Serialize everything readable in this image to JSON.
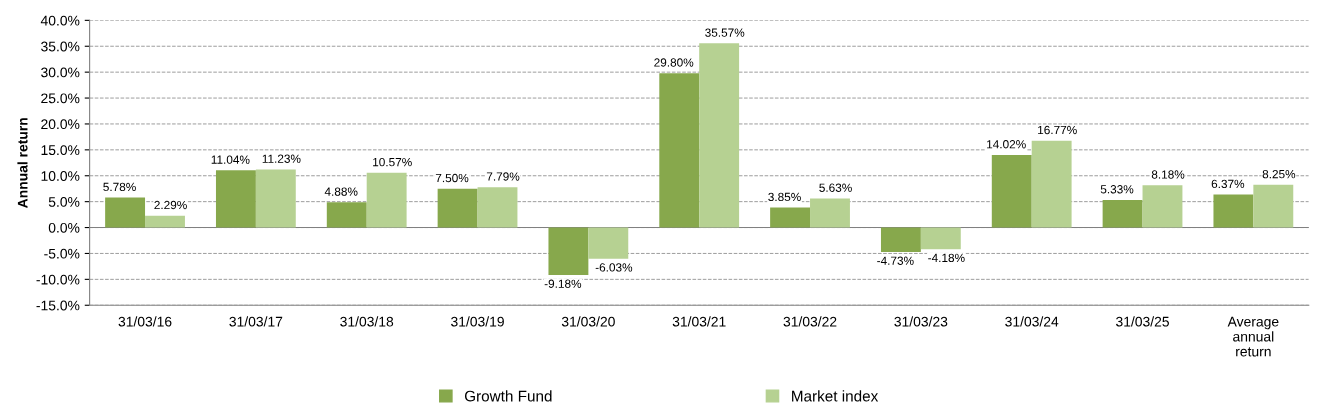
{
  "chart_data": {
    "type": "bar",
    "ylabel": "Annual return",
    "categories": [
      "31/03/16",
      "31/03/17",
      "31/03/18",
      "31/03/19",
      "31/03/20",
      "31/03/21",
      "31/03/22",
      "31/03/23",
      "31/03/24",
      "31/03/25",
      "Average\nannual\nreturn"
    ],
    "series": [
      {
        "name": "Growth Fund",
        "color": "#87a84c",
        "values": [
          5.78,
          11.04,
          4.88,
          7.5,
          -9.18,
          29.8,
          3.85,
          -4.73,
          14.02,
          5.33,
          6.37
        ],
        "value_labels": [
          "5.78%",
          "11.04%",
          "4.88%",
          "7.50%",
          "-9.18%",
          "29.80%",
          "3.85%",
          "-4.73%",
          "14.02%",
          "5.33%",
          "6.37%"
        ]
      },
      {
        "name": "Market index",
        "color": "#b6d192",
        "values": [
          2.29,
          11.23,
          10.57,
          7.79,
          -6.03,
          35.57,
          5.63,
          -4.18,
          16.77,
          8.18,
          8.25
        ],
        "value_labels": [
          "2.29%",
          "11.23%",
          "10.57%",
          "7.79%",
          "-6.03%",
          "35.57%",
          "5.63%",
          "-4.18%",
          "16.77%",
          "8.18%",
          "8.25%"
        ]
      }
    ],
    "ylim": [
      -15,
      40
    ],
    "yticks": [
      {
        "value": -15,
        "label": "-15.0%"
      },
      {
        "value": -10,
        "label": "-10.0%"
      },
      {
        "value": -5,
        "label": "-5.0%"
      },
      {
        "value": 0,
        "label": "0.0%"
      },
      {
        "value": 5,
        "label": "5.0%"
      },
      {
        "value": 10,
        "label": "10.0%"
      },
      {
        "value": 15,
        "label": "15.0%"
      },
      {
        "value": 20,
        "label": "20.0%"
      },
      {
        "value": 25,
        "label": "25.0%"
      },
      {
        "value": 30,
        "label": "30.0%"
      },
      {
        "value": 35,
        "label": "35.0%"
      },
      {
        "value": 40,
        "label": "40.0%"
      }
    ],
    "grid": "y",
    "legend": "bottom"
  }
}
